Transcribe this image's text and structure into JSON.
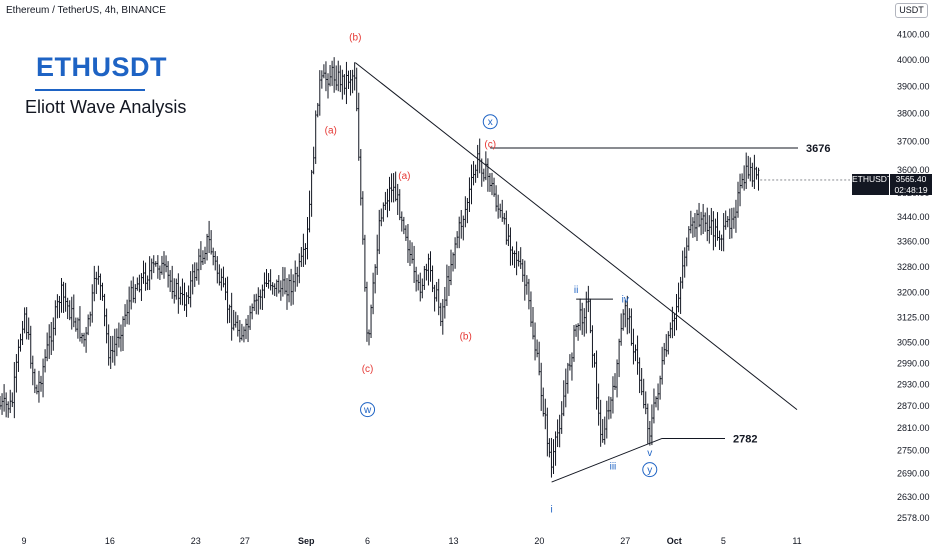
{
  "header": {
    "symbol_info": "Ethereum / TetherUS, 4h, BINANCE",
    "brand_title": "ETHUSDT",
    "subtitle": "Eliott Wave Analysis",
    "unit_badge": "USDT"
  },
  "price_tag": {
    "symbol": "ETHUSDT",
    "price": "3565.40",
    "countdown": "02:48:19"
  },
  "colors": {
    "candles": "#131722",
    "red_labels": "#e53935",
    "blue_labels": "#1e63c4",
    "trendlines": "#131722",
    "axis_text": "#131722",
    "background": "#ffffff"
  },
  "chart_data": {
    "type": "candlestick",
    "timeframe": "4h",
    "y_axis": {
      "position": "right",
      "ticks": [
        2578,
        2630,
        2690,
        2750,
        2810,
        2870,
        2930,
        2990,
        3050,
        3125,
        3200,
        3280,
        3360,
        3440,
        3520,
        3600,
        3700,
        3800,
        3900,
        4000,
        4100,
        4200
      ],
      "tick_labels": [
        "2578.00",
        "2630.00",
        "2690.00",
        "2750.00",
        "2810.00",
        "2870.00",
        "2930.00",
        "2990.00",
        "3050.00",
        "3125.00",
        "3200.00",
        "3280.00",
        "3360.00",
        "3440.00",
        "3520.00",
        "3600.00",
        "3700.00",
        "3800.00",
        "3900.00",
        "4000.00",
        "4100.00",
        "4200.00"
      ],
      "log_scale": true
    },
    "x_axis": {
      "tick_labels": [
        "9",
        "16",
        "23",
        "27",
        "Sep",
        "6",
        "13",
        "20",
        "27",
        "Oct",
        "5",
        "11"
      ],
      "bold_labels": [
        "Sep",
        "Oct"
      ]
    },
    "price_path": [
      {
        "date": "2024-08-08",
        "close": 2870
      },
      {
        "date": "2024-08-09",
        "close": 3150
      },
      {
        "date": "2024-08-10",
        "close": 2900
      },
      {
        "date": "2024-08-12",
        "close": 3200
      },
      {
        "date": "2024-08-14",
        "close": 3050
      },
      {
        "date": "2024-08-15",
        "close": 3280
      },
      {
        "date": "2024-08-16",
        "close": 3000
      },
      {
        "date": "2024-08-18",
        "close": 3220
      },
      {
        "date": "2024-08-20",
        "close": 3290
      },
      {
        "date": "2024-08-22",
        "close": 3170
      },
      {
        "date": "2024-08-24",
        "close": 3370
      },
      {
        "date": "2024-08-25",
        "close": 3230
      },
      {
        "date": "2024-08-26",
        "close": 3110
      },
      {
        "date": "2024-08-27",
        "close": 3070
      },
      {
        "date": "2024-08-28",
        "close": 3180
      },
      {
        "date": "2024-08-29",
        "close": 3240
      },
      {
        "date": "2024-08-30",
        "close": 3210
      },
      {
        "date": "2024-08-31",
        "close": 3230
      },
      {
        "date": "2024-09-01",
        "close": 3330
      },
      {
        "date": "2024-09-02",
        "close": 3900
      },
      {
        "date": "2024-09-03",
        "close": 3950
      },
      {
        "date": "2024-09-04",
        "close": 3920
      },
      {
        "date": "2024-09-05",
        "close": 3950
      },
      {
        "date": "2024-09-06",
        "close": 3020
      },
      {
        "date": "2024-09-07",
        "close": 3450
      },
      {
        "date": "2024-09-08",
        "close": 3550
      },
      {
        "date": "2024-09-09",
        "close": 3420
      },
      {
        "date": "2024-09-10",
        "close": 3200
      },
      {
        "date": "2024-09-11",
        "close": 3280
      },
      {
        "date": "2024-09-12",
        "close": 3130
      },
      {
        "date": "2024-09-13",
        "close": 3340
      },
      {
        "date": "2024-09-14",
        "close": 3470
      },
      {
        "date": "2024-09-15",
        "close": 3640
      },
      {
        "date": "2024-09-16",
        "close": 3560
      },
      {
        "date": "2024-09-17",
        "close": 3420
      },
      {
        "date": "2024-09-18",
        "close": 3330
      },
      {
        "date": "2024-09-19",
        "close": 3200
      },
      {
        "date": "2024-09-20",
        "close": 2950
      },
      {
        "date": "2024-09-21",
        "close": 2700
      },
      {
        "date": "2024-09-22",
        "close": 2900
      },
      {
        "date": "2024-09-23",
        "close": 3100
      },
      {
        "date": "2024-09-24",
        "close": 3170
      },
      {
        "date": "2024-09-25",
        "close": 2780
      },
      {
        "date": "2024-09-26",
        "close": 2900
      },
      {
        "date": "2024-09-27",
        "close": 3170
      },
      {
        "date": "2024-09-28",
        "close": 2980
      },
      {
        "date": "2024-09-29",
        "close": 2800
      },
      {
        "date": "2024-09-30",
        "close": 2980
      },
      {
        "date": "2024-10-01",
        "close": 3120
      },
      {
        "date": "2024-10-02",
        "close": 3360
      },
      {
        "date": "2024-10-03",
        "close": 3440
      },
      {
        "date": "2024-10-04",
        "close": 3400
      },
      {
        "date": "2024-10-05",
        "close": 3380
      },
      {
        "date": "2024-10-06",
        "close": 3480
      },
      {
        "date": "2024-10-07",
        "close": 3600
      },
      {
        "date": "2024-10-08",
        "close": 3565
      }
    ],
    "horizontal_levels": [
      {
        "label": "3676",
        "price": 3676
      },
      {
        "label": "2782",
        "price": 2782
      }
    ],
    "trendlines": [
      {
        "name": "descending",
        "from": {
          "date": "2024-09-05",
          "price": 3990
        },
        "to": {
          "date": "2024-10-11",
          "price": 2860
        }
      },
      {
        "name": "lower-wedge",
        "from": {
          "date": "2024-09-21",
          "price": 2668
        },
        "to": {
          "date": "2024-09-30",
          "price": 2782
        }
      },
      {
        "name": "upper-wedge",
        "from": {
          "date": "2024-09-23",
          "price": 3180
        },
        "to": {
          "date": "2024-09-26",
          "price": 3180
        }
      }
    ],
    "wave_labels": [
      {
        "text": "(b)",
        "date": "2024-09-05",
        "price": 4090,
        "color": "red"
      },
      {
        "text": "(a)",
        "date": "2024-09-03",
        "price": 3740,
        "color": "red"
      },
      {
        "text": "(c)",
        "date": "2024-09-06",
        "price": 2975,
        "color": "red"
      },
      {
        "text": "w",
        "date": "2024-09-06",
        "price": 2860,
        "color": "blue",
        "circled": true
      },
      {
        "text": "(a)",
        "date": "2024-09-09",
        "price": 3580,
        "color": "red"
      },
      {
        "text": "(b)",
        "date": "2024-09-14",
        "price": 3070,
        "color": "red"
      },
      {
        "text": "x",
        "date": "2024-09-16",
        "price": 3770,
        "color": "blue",
        "circled": true
      },
      {
        "text": "(c)",
        "date": "2024-09-16",
        "price": 3690,
        "color": "red"
      },
      {
        "text": "i",
        "date": "2024-09-21",
        "price": 2600,
        "color": "blue"
      },
      {
        "text": "ii",
        "date": "2024-09-23",
        "price": 3210,
        "color": "blue"
      },
      {
        "text": "iii",
        "date": "2024-09-26",
        "price": 2710,
        "color": "blue"
      },
      {
        "text": "iv",
        "date": "2024-09-27",
        "price": 3180,
        "color": "blue"
      },
      {
        "text": "v",
        "date": "2024-09-29",
        "price": 2745,
        "color": "blue"
      },
      {
        "text": "y",
        "date": "2024-09-29",
        "price": 2700,
        "color": "blue",
        "circled": true
      }
    ]
  }
}
